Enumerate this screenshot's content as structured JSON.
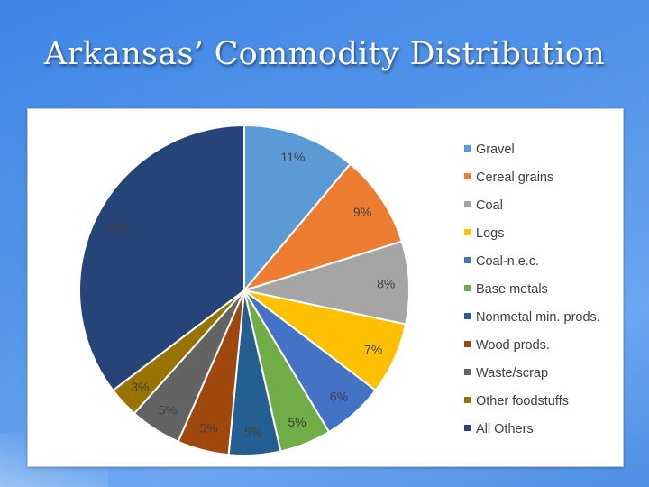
{
  "slide": {
    "title": "Arkansas’ Commodity Distribution"
  },
  "chart_data": {
    "type": "pie",
    "title": "",
    "legend_position": "right",
    "categories": [
      "Gravel",
      "Cereal grains",
      "Coal",
      "Logs",
      "Coal-n.e.c.",
      "Base metals",
      "Nonmetal min. prods.",
      "Wood prods.",
      "Waste/scrap",
      "Other foodstuffs",
      "All Others"
    ],
    "values": [
      11,
      9,
      8,
      7,
      6,
      5,
      5,
      5,
      5,
      3,
      35
    ],
    "labels": [
      "11%",
      "9%",
      "8%",
      "7%",
      "6%",
      "5%",
      "5%",
      "5%",
      "5%",
      "3%",
      "35%"
    ],
    "colors": [
      "#5b9bd5",
      "#ed7d31",
      "#a5a5a5",
      "#ffc000",
      "#4472c4",
      "#70ad47",
      "#255e91",
      "#9e480e",
      "#636363",
      "#997300",
      "#264478"
    ]
  }
}
